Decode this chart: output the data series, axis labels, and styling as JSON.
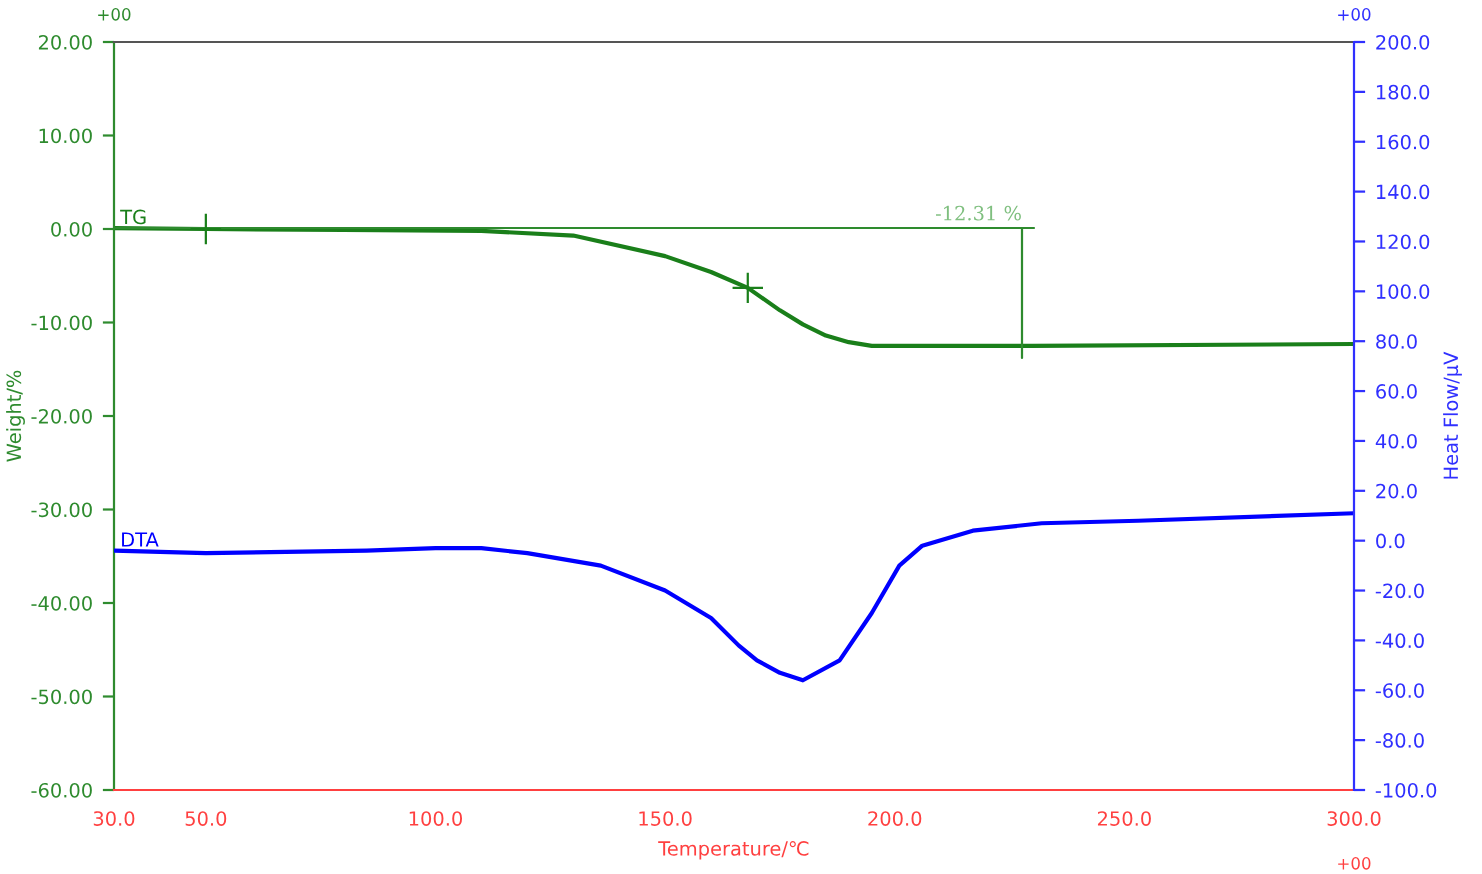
{
  "chart_data": {
    "type": "line",
    "xlabel": "Temperature/℃",
    "ylabel": "Weight/%",
    "y2label": "Heat Flow/μV",
    "xlim": [
      30,
      300
    ],
    "xticks": [
      {
        "value": 30,
        "label": "30.0"
      },
      {
        "value": 50,
        "label": "50.0"
      },
      {
        "value": 100,
        "label": "100.0"
      },
      {
        "value": 150,
        "label": "150.0"
      },
      {
        "value": 200,
        "label": "200.0"
      },
      {
        "value": 250,
        "label": "250.0"
      },
      {
        "value": 300,
        "label": "300.0"
      }
    ],
    "ylim": [
      -60,
      20
    ],
    "yticks": [
      {
        "value": -60,
        "label": "-60.00"
      },
      {
        "value": -50,
        "label": "-50.00"
      },
      {
        "value": -40,
        "label": "-40.00"
      },
      {
        "value": -30,
        "label": "-30.00"
      },
      {
        "value": -20,
        "label": "-20.00"
      },
      {
        "value": -10,
        "label": "-10.00"
      },
      {
        "value": 0,
        "label": "0.00"
      },
      {
        "value": 10,
        "label": "10.00"
      },
      {
        "value": 20,
        "label": "20.00"
      }
    ],
    "y2lim": [
      -100,
      200
    ],
    "y2ticks": [
      {
        "value": -100,
        "label": "-100.0"
      },
      {
        "value": -80,
        "label": "-80.0"
      },
      {
        "value": -60,
        "label": "-60.0"
      },
      {
        "value": -40,
        "label": "-40.0"
      },
      {
        "value": -20,
        "label": "-20.0"
      },
      {
        "value": 0,
        "label": "0.0"
      },
      {
        "value": 20,
        "label": "20.0"
      },
      {
        "value": 40,
        "label": "40.0"
      },
      {
        "value": 60,
        "label": "60.0"
      },
      {
        "value": 80,
        "label": "80.0"
      },
      {
        "value": 100,
        "label": "100.0"
      },
      {
        "value": 120,
        "label": "120.0"
      },
      {
        "value": 140,
        "label": "140.0"
      },
      {
        "value": 160,
        "label": "160.0"
      },
      {
        "value": 180,
        "label": "180.0"
      },
      {
        "value": 200,
        "label": "200.0"
      }
    ],
    "grid": false,
    "legend": false,
    "series": [
      {
        "name": "TG",
        "axis": "y",
        "color": "#1a7f1a",
        "x": [
          30,
          50,
          80,
          110,
          130,
          150,
          160,
          168,
          175,
          180,
          185,
          190,
          195,
          200,
          230,
          300
        ],
        "values": [
          0.1,
          0.0,
          -0.1,
          -0.2,
          -0.7,
          -2.9,
          -4.6,
          -6.3,
          -8.7,
          -10.2,
          -11.4,
          -12.1,
          -12.5,
          -12.5,
          -12.5,
          -12.3
        ]
      },
      {
        "type": "scatter",
        "axis": "y",
        "marker": "cross",
        "color": "#1a7f1a",
        "x": [
          50,
          168
        ],
        "values": [
          0.0,
          -6.3
        ]
      },
      {
        "name": "DTA",
        "axis": "y2",
        "color": "#0000ff",
        "x": [
          30,
          50,
          85,
          100,
          110,
          120,
          136,
          150,
          160,
          166,
          170,
          175,
          180,
          188,
          195,
          201,
          206,
          217,
          232,
          253,
          300
        ],
        "values": [
          -4,
          -5,
          -4,
          -3,
          -3,
          -5,
          -10,
          -20,
          -31,
          -42,
          -48,
          -53,
          -56,
          -48,
          -29,
          -10,
          -2,
          4,
          7,
          8,
          11
        ]
      }
    ],
    "annotations": [
      "-12.31 %",
      "+00",
      "+00",
      "+00"
    ]
  }
}
